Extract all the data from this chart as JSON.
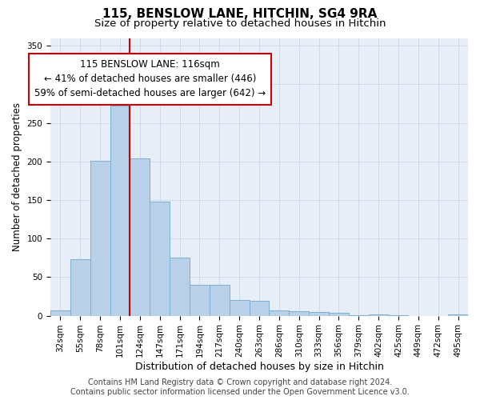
{
  "title": "115, BENSLOW LANE, HITCHIN, SG4 9RA",
  "subtitle": "Size of property relative to detached houses in Hitchin",
  "xlabel": "Distribution of detached houses by size in Hitchin",
  "ylabel": "Number of detached properties",
  "categories": [
    "32sqm",
    "55sqm",
    "78sqm",
    "101sqm",
    "124sqm",
    "147sqm",
    "171sqm",
    "194sqm",
    "217sqm",
    "240sqm",
    "263sqm",
    "286sqm",
    "310sqm",
    "333sqm",
    "356sqm",
    "379sqm",
    "402sqm",
    "425sqm",
    "449sqm",
    "472sqm",
    "495sqm"
  ],
  "values": [
    7,
    73,
    201,
    272,
    204,
    148,
    75,
    40,
    40,
    20,
    19,
    7,
    6,
    5,
    4,
    1,
    2,
    1,
    0,
    0,
    2
  ],
  "bar_color": "#b8d0e8",
  "bar_edge_color": "#7aafd4",
  "bar_edge_width": 0.7,
  "vline_color": "#cc0000",
  "vline_lw": 1.5,
  "annotation_text": "115 BENSLOW LANE: 116sqm\n← 41% of detached houses are smaller (446)\n59% of semi-detached houses are larger (642) →",
  "annotation_box_color": "#ffffff",
  "annotation_box_edge_color": "#cc0000",
  "annotation_box_edge_width": 1.5,
  "ylim": [
    0,
    360
  ],
  "yticks": [
    0,
    50,
    100,
    150,
    200,
    250,
    300,
    350
  ],
  "grid_color": "#c8d8ec",
  "background_color": "#e8eef8",
  "footer_text": "Contains HM Land Registry data © Crown copyright and database right 2024.\nContains public sector information licensed under the Open Government Licence v3.0.",
  "title_fontsize": 11,
  "subtitle_fontsize": 9.5,
  "xlabel_fontsize": 9,
  "ylabel_fontsize": 8.5,
  "tick_fontsize": 7.5,
  "annotation_fontsize": 8.5,
  "footer_fontsize": 7
}
